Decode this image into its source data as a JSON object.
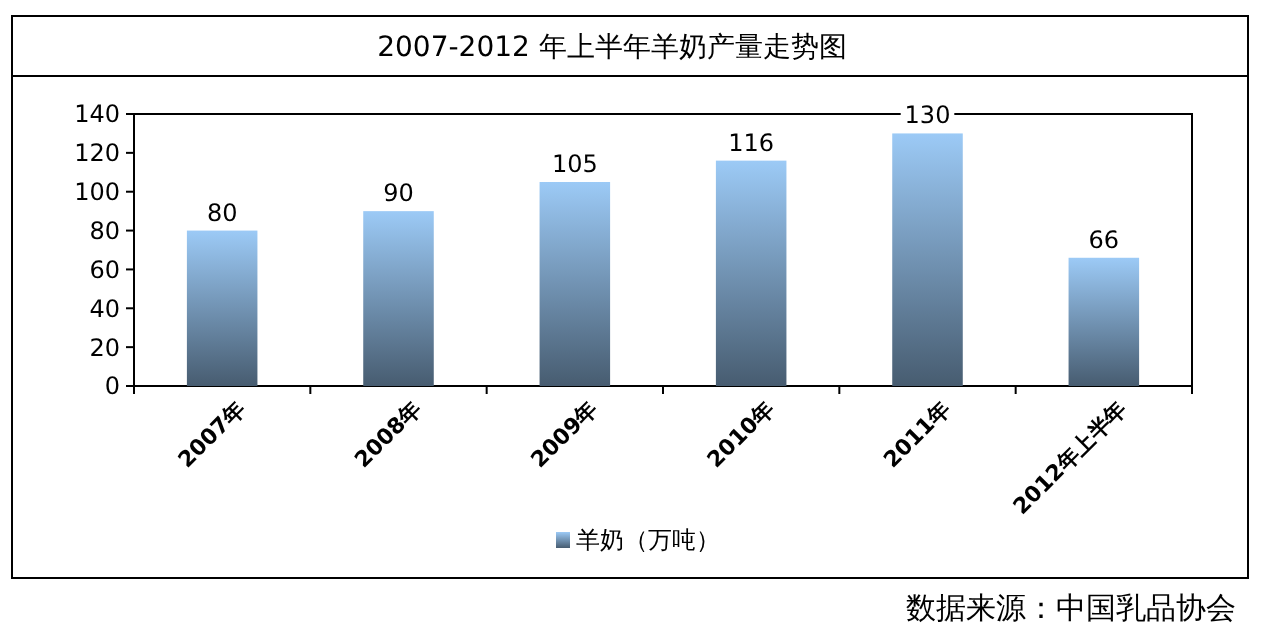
{
  "chart_data": {
    "type": "bar",
    "title": "2007-2012 年上半年羊奶产量走势图",
    "categories": [
      "2007年",
      "2008年",
      "2009年",
      "2010年",
      "2011年",
      "2012年上半年"
    ],
    "series": [
      {
        "name": "羊奶（万吨）",
        "color": "#9ccaf6",
        "values": [
          80,
          90,
          105,
          116,
          130,
          66
        ]
      }
    ],
    "ylim": [
      0,
      140
    ],
    "yticks": [
      0,
      20,
      40,
      60,
      80,
      100,
      120,
      140
    ],
    "grid": false,
    "legend": "bottom",
    "data_labels": true,
    "annotations": [
      "数据来源：中国乳品协会"
    ]
  }
}
